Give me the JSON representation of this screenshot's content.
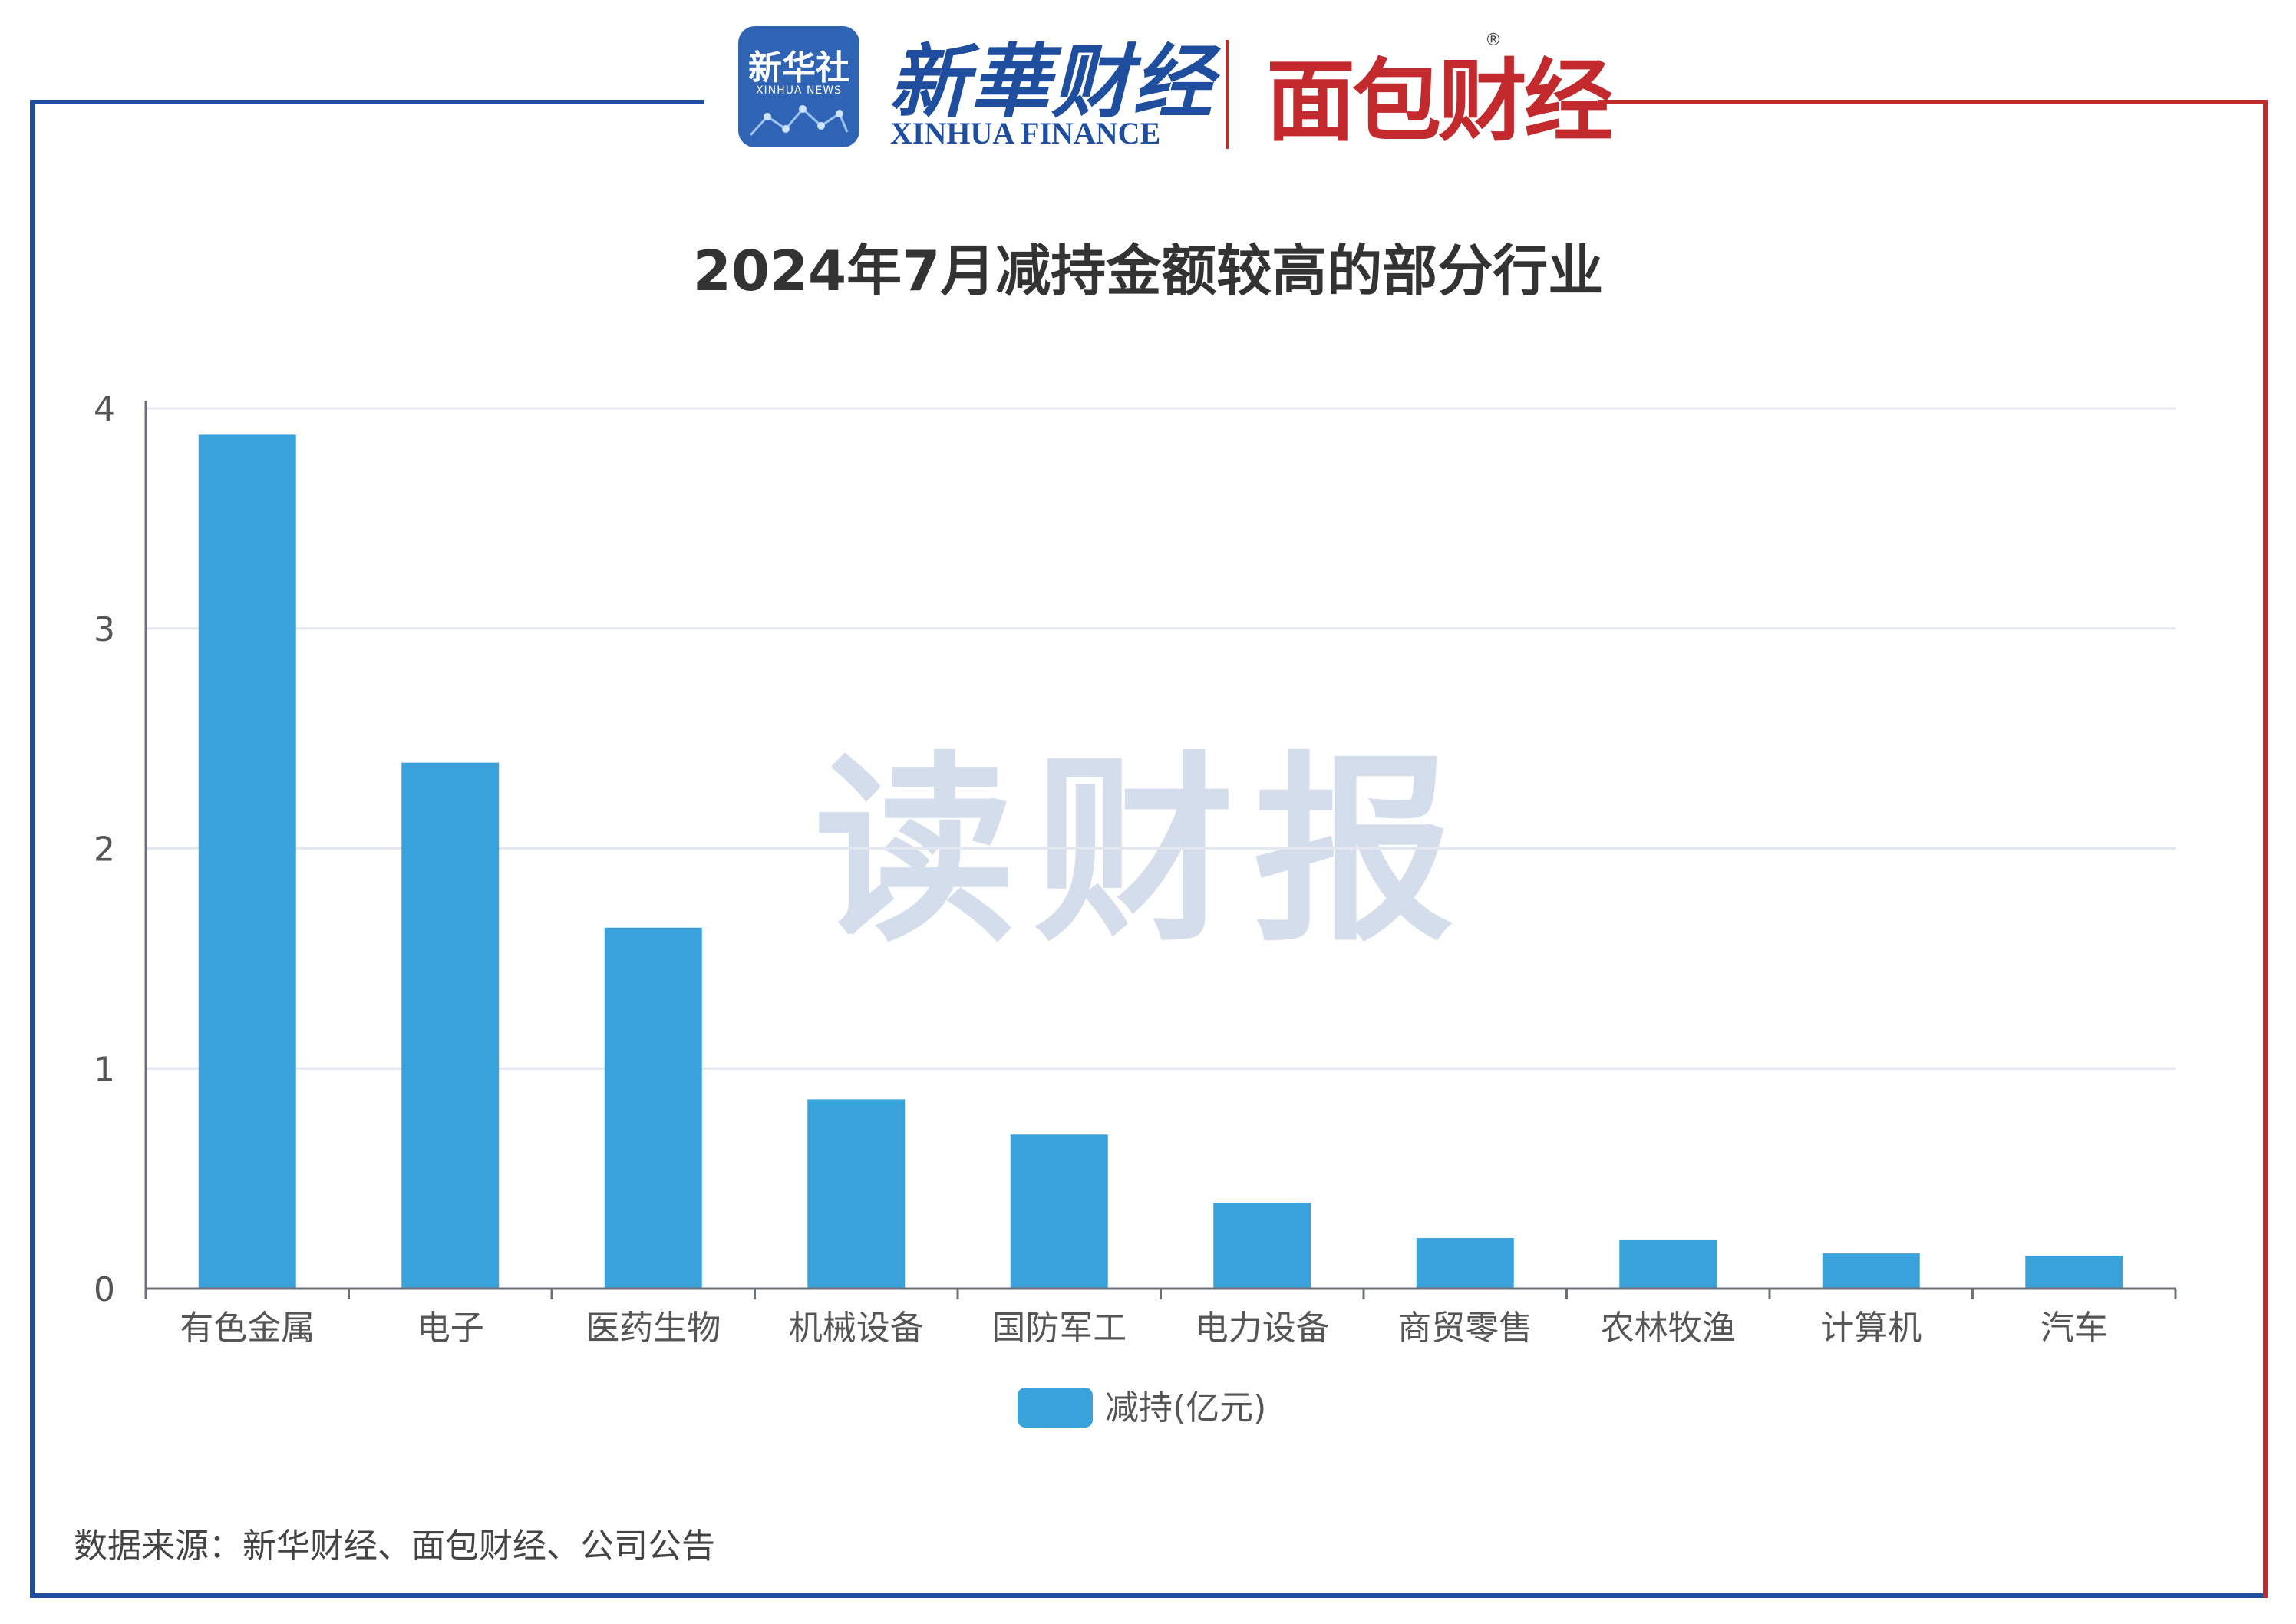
{
  "header": {
    "xinhua_badge_cn": "新华社",
    "xinhua_badge_en": "XINHUA NEWS",
    "xinhua_finance_cn": "新華财经",
    "xinhua_finance_en": "XINHUA FINANCE",
    "mianbao": "面包财经",
    "reg_mark": "®"
  },
  "watermark": "读财报",
  "source_note": "数据来源：新华财经、面包财经、公司公告",
  "colors": {
    "bar": "#3aa2db",
    "frame_left": "#1f4e9e",
    "frame_right": "#c22a2e",
    "grid": "#e3e7ef",
    "axis": "#6e7079",
    "text": "#555555",
    "title": "#333333",
    "watermark": "#d3ddec"
  },
  "chart_data": {
    "type": "bar",
    "title": "2024年7月减持金额较高的部分行业",
    "categories": [
      "有色金属",
      "电子",
      "医药生物",
      "机械设备",
      "国防军工",
      "电力设备",
      "商贸零售",
      "农林牧渔",
      "计算机",
      "汽车"
    ],
    "series": [
      {
        "name": "减持(亿元)",
        "values": [
          3.88,
          2.39,
          1.64,
          0.86,
          0.7,
          0.39,
          0.23,
          0.22,
          0.16,
          0.15
        ]
      }
    ],
    "y_ticks": [
      0,
      1,
      2,
      3,
      4
    ],
    "ylim": [
      0,
      4
    ],
    "xlabel": "",
    "ylabel": "",
    "grid": true,
    "legend_position": "bottom-center"
  }
}
